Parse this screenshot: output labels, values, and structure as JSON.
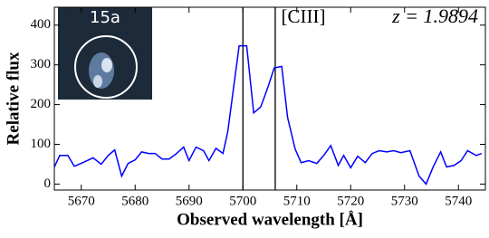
{
  "chart_data": {
    "type": "line",
    "x_label": "Observed wavelength [Å]",
    "y_label": "Relative flux",
    "annotations": [
      "[CIII]",
      "z = 1.9894"
    ],
    "inset_label": "15a",
    "vlines": [
      5700,
      5706
    ],
    "xlim": [
      5665,
      5745
    ],
    "ylim": [
      -15,
      445
    ],
    "xticks": [
      5670,
      5680,
      5690,
      5700,
      5710,
      5720,
      5730,
      5740
    ],
    "yticks": [
      0,
      100,
      200,
      300,
      400
    ],
    "series": [
      {
        "color": "#0000ff",
        "x": [
          5665,
          5666,
          5667.5,
          5668.7,
          5670.3,
          5672.2,
          5673.7,
          5675,
          5676.2,
          5677.5,
          5678.7,
          5680,
          5681.2,
          5682.5,
          5683.7,
          5685,
          5686.3,
          5687.7,
          5689,
          5690,
          5691.3,
          5692.7,
          5693.7,
          5695,
          5696.3,
          5697.2,
          5698.3,
          5699.3,
          5700.7,
          5702,
          5703.3,
          5704.7,
          5705.8,
          5707.2,
          5708.3,
          5709.7,
          5710.8,
          5712.2,
          5713.7,
          5715,
          5716.3,
          5717.7,
          5718.7,
          5720,
          5721.3,
          5722.7,
          5724,
          5725.3,
          5726.7,
          5728,
          5729.3,
          5731,
          5732.7,
          5734,
          5735.3,
          5736.7,
          5737.8,
          5739.2,
          5740.5,
          5741.7,
          5743.3,
          5744.3
        ],
        "values": [
          43,
          72,
          72,
          45,
          54,
          66,
          50,
          72,
          86,
          20,
          52,
          61,
          81,
          77,
          77,
          63,
          63,
          77,
          93,
          59,
          93,
          84,
          59,
          90,
          77,
          133,
          246,
          348,
          348,
          179,
          194,
          246,
          292,
          296,
          167,
          88,
          54,
          59,
          52,
          72,
          97,
          47,
          72,
          41,
          70,
          54,
          77,
          84,
          81,
          84,
          79,
          84,
          20,
          0,
          43,
          81,
          43,
          47,
          59,
          84,
          72,
          77
        ]
      }
    ]
  }
}
